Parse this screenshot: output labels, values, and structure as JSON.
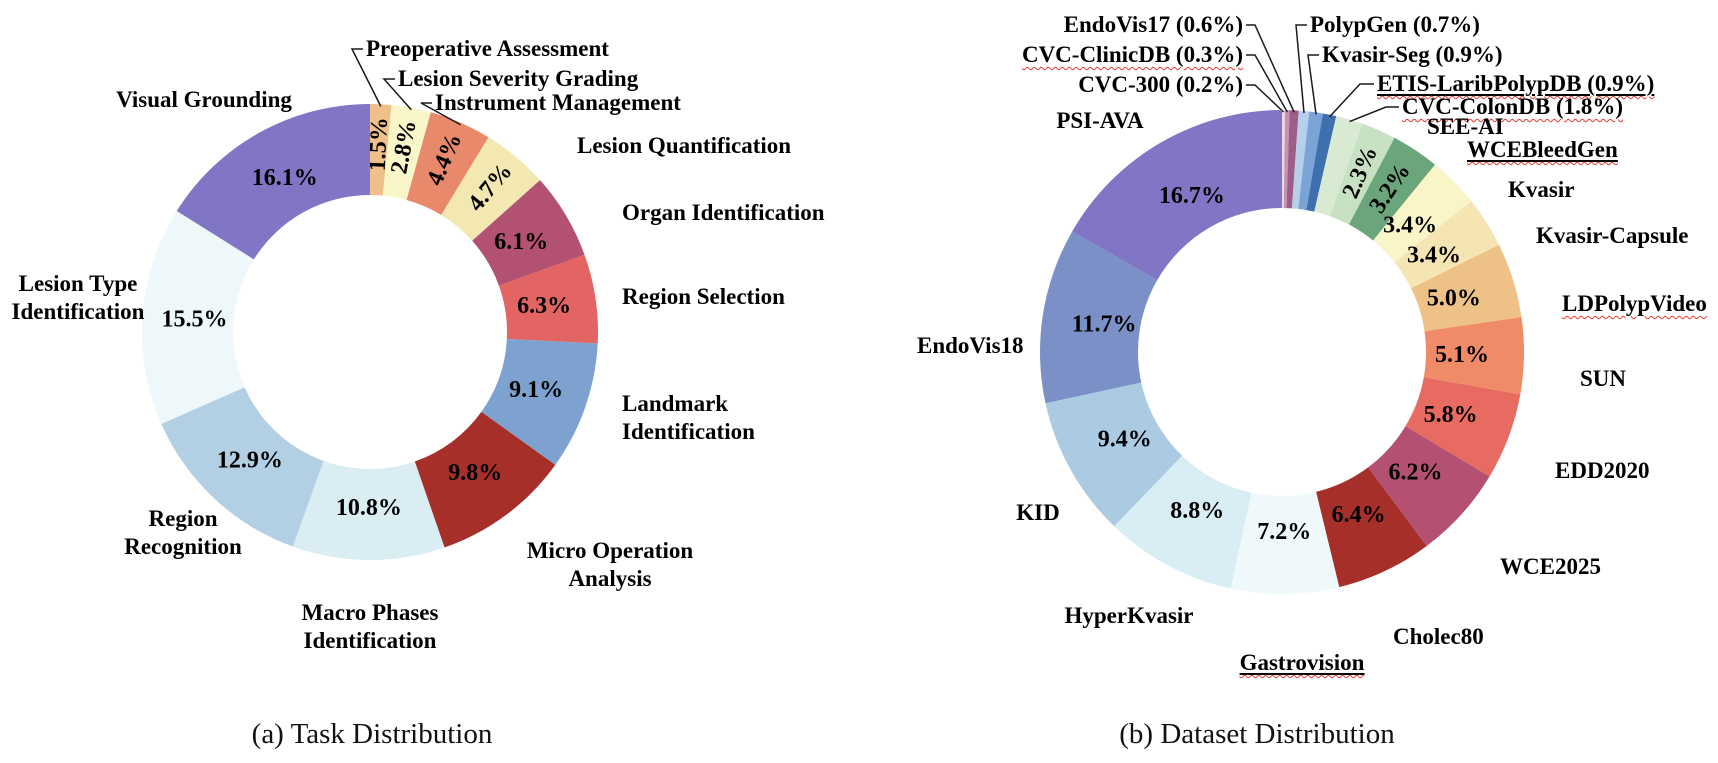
{
  "figure": {
    "background": "#ffffff",
    "text_color": "#000000",
    "leader_line_color": "#1a1a1a",
    "squiggle_color": "#e8392f"
  },
  "chart_data": [
    {
      "type": "pie",
      "subtype": "donut",
      "title": "(a) Task Distribution",
      "direction": "clockwise",
      "start": "top",
      "order": "ascending-by-value",
      "legend_position": "labels-around-donut",
      "slices": [
        {
          "label": "Preoperative Assessment",
          "value_pct": 1.5,
          "pct_label": "1.5%",
          "color": "#efc08a",
          "callout": true
        },
        {
          "label": "Lesion Severity Grading",
          "value_pct": 2.8,
          "pct_label": "2.8%",
          "color": "#f9f6c9",
          "callout": true
        },
        {
          "label": "Instrument Management",
          "value_pct": 4.4,
          "pct_label": "4.4%",
          "color": "#e9896b",
          "callout": true
        },
        {
          "label": "Lesion Quantification",
          "value_pct": 4.7,
          "pct_label": "4.7%",
          "color": "#f3e8b2"
        },
        {
          "label": "Organ Identification",
          "value_pct": 6.1,
          "pct_label": "6.1%",
          "color": "#b25172"
        },
        {
          "label": "Region Selection",
          "value_pct": 6.3,
          "pct_label": "6.3%",
          "color": "#e26463"
        },
        {
          "label": "Landmark\nIdentification",
          "value_pct": 9.1,
          "pct_label": "9.1%",
          "color": "#7da2cf"
        },
        {
          "label": "Micro Operation\nAnalysis",
          "value_pct": 9.8,
          "pct_label": "9.8%",
          "color": "#a63029"
        },
        {
          "label": "Macro Phases\nIdentification",
          "value_pct": 10.8,
          "pct_label": "10.8%",
          "color": "#d9edf3"
        },
        {
          "label": "Region\nRecognition",
          "value_pct": 12.9,
          "pct_label": "12.9%",
          "color": "#b2cfe3"
        },
        {
          "label": "Lesion Type\nIdentification",
          "value_pct": 15.5,
          "pct_label": "15.5%",
          "color": "#eef8fa"
        },
        {
          "label": "Visual Grounding",
          "value_pct": 16.1,
          "pct_label": "16.1%",
          "color": "#8175c5"
        }
      ]
    },
    {
      "type": "pie",
      "subtype": "donut",
      "title": "(b) Dataset Distribution",
      "direction": "clockwise",
      "start": "top",
      "order": "ascending-by-value",
      "legend_position": "labels-around-donut",
      "slices": [
        {
          "label": "CVC-300",
          "value_pct": 0.2,
          "pct_label": "0.2%",
          "color": "#ecd9e6",
          "callout": true,
          "pct_in_label": true
        },
        {
          "label": "CVC-ClinicDB",
          "value_pct": 0.3,
          "pct_label": "0.3%",
          "color": "#c791b4",
          "callout": true,
          "pct_in_label": true,
          "squiggle": true
        },
        {
          "label": "EndoVis17",
          "value_pct": 0.6,
          "pct_label": "0.6%",
          "color": "#9c5e86",
          "callout": true,
          "pct_in_label": true
        },
        {
          "label": "PolypGen",
          "value_pct": 0.7,
          "pct_label": "0.7%",
          "color": "#b6cfea",
          "callout": true,
          "pct_in_label": true
        },
        {
          "label": "Kvasir-Seg",
          "value_pct": 0.9,
          "pct_label": "0.9%",
          "color": "#7ba4d6",
          "callout": true,
          "pct_in_label": true
        },
        {
          "label": "ETIS-LaribPolypDB",
          "value_pct": 0.9,
          "pct_label": "0.9%",
          "color": "#3f6fae",
          "callout": true,
          "pct_in_label": true,
          "squiggle": true,
          "underline": true
        },
        {
          "label": "CVC-ColonDB",
          "value_pct": 1.8,
          "pct_label": "1.8%",
          "color": "#d9ead2",
          "callout": true,
          "pct_in_label": true,
          "squiggle": true
        },
        {
          "label": "SEE-AI",
          "value_pct": 2.3,
          "pct_label": "2.3%",
          "color": "#c8e1c3"
        },
        {
          "label": "WCEBleedGen",
          "value_pct": 3.2,
          "pct_label": "3.2%",
          "color": "#6ba57b",
          "squiggle": true,
          "underline": true
        },
        {
          "label": "Kvasir",
          "value_pct": 3.4,
          "pct_label": "3.4%",
          "color": "#f9f5c9"
        },
        {
          "label": "Kvasir-Capsule",
          "value_pct": 3.4,
          "pct_label": "3.4%",
          "color": "#f4e5b2"
        },
        {
          "label": "LDPolypVideo",
          "value_pct": 5.0,
          "pct_label": "5.0%",
          "color": "#eec286",
          "squiggle": true
        },
        {
          "label": "SUN",
          "value_pct": 5.1,
          "pct_label": "5.1%",
          "color": "#f08b67"
        },
        {
          "label": "EDD2020",
          "value_pct": 5.8,
          "pct_label": "5.8%",
          "color": "#e76b61"
        },
        {
          "label": "WCE2025",
          "value_pct": 6.2,
          "pct_label": "6.2%",
          "color": "#b45173"
        },
        {
          "label": "Cholec80",
          "value_pct": 6.4,
          "pct_label": "6.4%",
          "color": "#a63029"
        },
        {
          "label": "Gastrovision",
          "value_pct": 7.2,
          "pct_label": "7.2%",
          "color": "#eff8fa",
          "squiggle": true,
          "underline": true
        },
        {
          "label": "HyperKvasir",
          "value_pct": 8.8,
          "pct_label": "8.8%",
          "color": "#d9edf4"
        },
        {
          "label": "KID",
          "value_pct": 9.4,
          "pct_label": "9.4%",
          "color": "#abcbe3"
        },
        {
          "label": "EndoVis18",
          "value_pct": 11.7,
          "pct_label": "11.7%",
          "color": "#7b90c7"
        },
        {
          "label": "PSI-AVA",
          "value_pct": 16.7,
          "pct_label": "16.7%",
          "color": "#8175c5"
        }
      ]
    }
  ]
}
